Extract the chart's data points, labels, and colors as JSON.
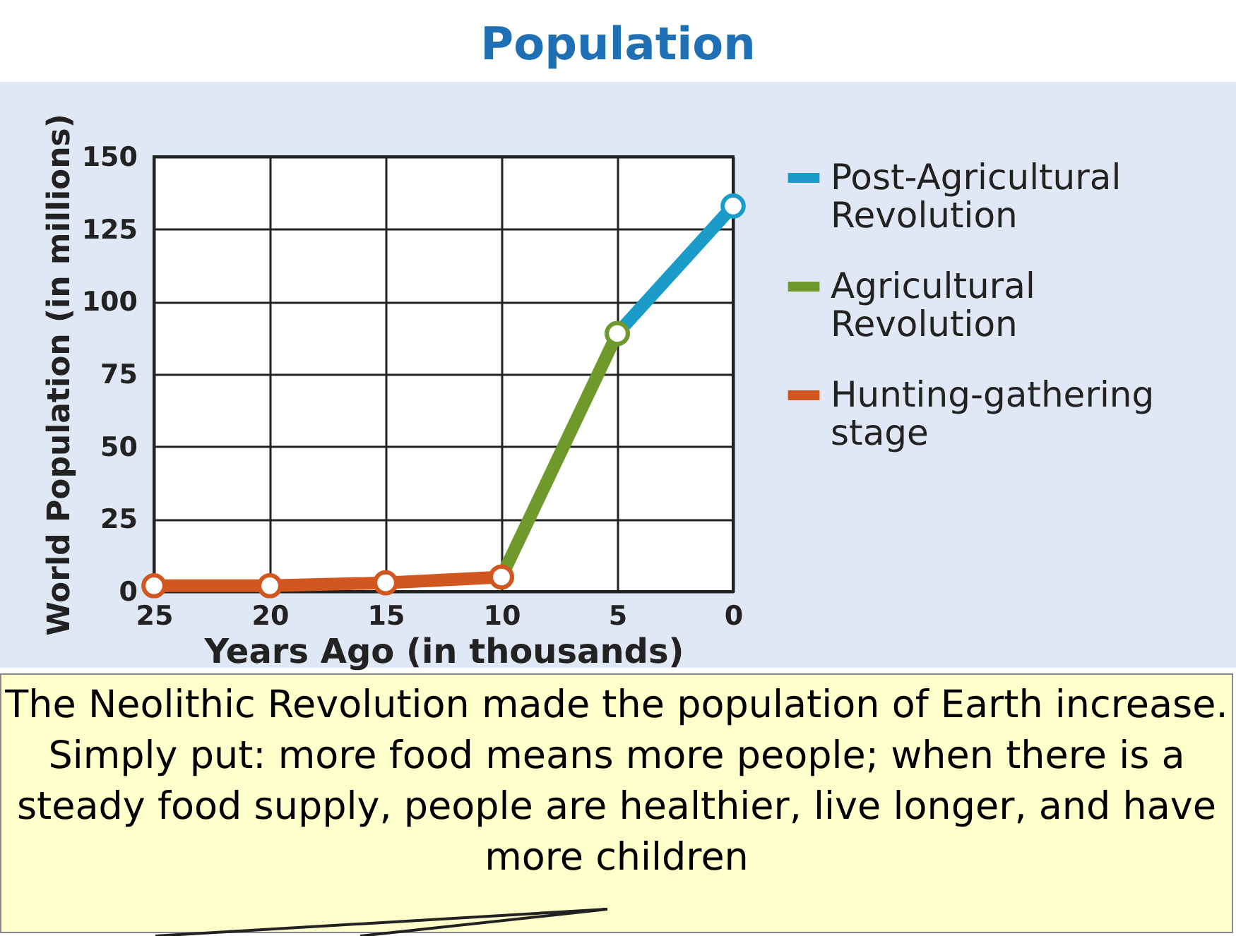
{
  "chart_data": {
    "type": "line",
    "title": "Population",
    "xlabel": "Years Ago (in thousands)",
    "ylabel": "World Population (in millions)",
    "series": [
      {
        "name": "Post-Agricultural Revolution",
        "color": "#1b9bc8",
        "x": [
          5,
          0
        ],
        "values": [
          89,
          133
        ]
      },
      {
        "name": "Agricultural Revolution",
        "color": "#6f9a2b",
        "x": [
          10,
          5
        ],
        "values": [
          5,
          89
        ]
      },
      {
        "name": "Hunting-gathering stage",
        "color": "#d2561f",
        "x": [
          25,
          20,
          15,
          10
        ],
        "values": [
          2,
          2,
          3,
          5
        ]
      }
    ],
    "xlim": [
      25,
      0
    ],
    "xticks": [
      25,
      20,
      15,
      10,
      5,
      0
    ],
    "ylim": [
      0,
      150
    ],
    "yticks": [
      0,
      25,
      50,
      75,
      100,
      125,
      150
    ],
    "grid": true,
    "legend": "right",
    "marker": "circle",
    "line_style": "solid",
    "annotations": [
      "The Neolithic Revolution made the population of Earth increase. Simply put: more food means more people; when there is a steady food supply, people are healthier, live longer, and have more children"
    ]
  }
}
